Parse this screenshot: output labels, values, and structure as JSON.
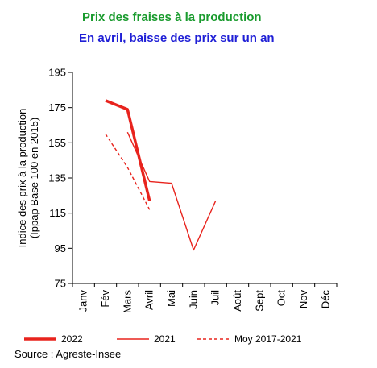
{
  "titles": {
    "main": "Prix des fraises à la production",
    "sub": "En avril, baisse des prix sur un an"
  },
  "source": "Source : Agreste-Insee",
  "colors": {
    "title_main": "#1a9b2e",
    "title_sub": "#1f1fd6",
    "series": "#e8231d",
    "axis": "#000000"
  },
  "chart_data": {
    "type": "line",
    "categories": [
      "Janv",
      "Fév",
      "Mars",
      "Avril",
      "Mai",
      "Juin",
      "Juil",
      "Août",
      "Sept",
      "Oct",
      "Nov",
      "Déc"
    ],
    "ylabel": "Indice des prix à la production\n(Ippap Base 100 en 2015)",
    "ylim": [
      75,
      195
    ],
    "yticks": [
      75,
      95,
      115,
      135,
      155,
      175,
      195
    ],
    "grid": false,
    "legend_position": "bottom",
    "series": [
      {
        "name": "2022",
        "style": "thick",
        "values": [
          null,
          179,
          174,
          122,
          null,
          null,
          null,
          null,
          null,
          null,
          null,
          null
        ]
      },
      {
        "name": "2021",
        "style": "thin",
        "values": [
          null,
          null,
          161,
          133,
          132,
          94,
          122,
          null,
          null,
          null,
          null,
          null
        ]
      },
      {
        "name": "Moy 2017-2021",
        "style": "dashed",
        "values": [
          null,
          160,
          141,
          117,
          null,
          null,
          null,
          null,
          null,
          null,
          null,
          null
        ]
      }
    ]
  }
}
